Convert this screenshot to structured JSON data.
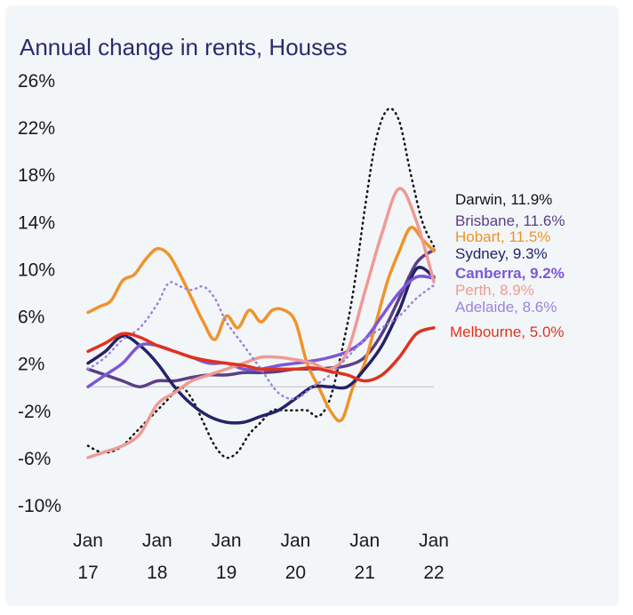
{
  "chart_data": {
    "type": "line",
    "title": "Annual change in rents, Houses",
    "xlabel": "",
    "ylabel": "",
    "xlim": [
      "2017-01",
      "2022-01"
    ],
    "ylim": [
      -10,
      26
    ],
    "y_ticks": [
      "26%",
      "22%",
      "18%",
      "14%",
      "10%",
      "6%",
      "2%",
      "-2%",
      "-6%",
      "-10%"
    ],
    "x_ticks": [
      {
        "line1": "Jan",
        "line2": "17"
      },
      {
        "line1": "Jan",
        "line2": "18"
      },
      {
        "line1": "Jan",
        "line2": "19"
      },
      {
        "line1": "Jan",
        "line2": "20"
      },
      {
        "line1": "Jan",
        "line2": "21"
      },
      {
        "line1": "Jan",
        "line2": "22"
      }
    ],
    "grid": false,
    "legend": "right, end-of-line labels",
    "series": [
      {
        "name": "Darwin",
        "label": "Darwin, 11.9%",
        "color": "#111111",
        "style": "dotted",
        "bold": false,
        "x": [
          "2017-01",
          "2017-03",
          "2017-05",
          "2017-07",
          "2017-09",
          "2017-11",
          "2018-01",
          "2018-03",
          "2018-05",
          "2018-07",
          "2018-09",
          "2018-11",
          "2019-01",
          "2019-03",
          "2019-05",
          "2019-07",
          "2019-09",
          "2019-11",
          "2020-01",
          "2020-03",
          "2020-05",
          "2020-07",
          "2020-09",
          "2020-11",
          "2021-01",
          "2021-03",
          "2021-05",
          "2021-07",
          "2021-09",
          "2021-11",
          "2022-01"
        ],
        "values": [
          -5,
          -5.5,
          -5.5,
          -5,
          -4,
          -3,
          -2,
          -1,
          0,
          -1,
          -3,
          -5,
          -6,
          -5.5,
          -4,
          -3,
          -2,
          -2,
          -2,
          -2,
          -2.5,
          -1,
          3,
          8,
          15,
          21,
          23.5,
          22.5,
          18,
          14,
          11.9
        ]
      },
      {
        "name": "Brisbane",
        "label": "Brisbane, 11.6%",
        "color": "#5b3f86",
        "style": "solid",
        "bold": false,
        "x": [
          "2017-01",
          "2017-04",
          "2017-07",
          "2017-10",
          "2018-01",
          "2018-04",
          "2018-07",
          "2018-10",
          "2019-01",
          "2019-04",
          "2019-07",
          "2019-10",
          "2020-01",
          "2020-04",
          "2020-07",
          "2020-10",
          "2021-01",
          "2021-04",
          "2021-07",
          "2021-10",
          "2022-01"
        ],
        "values": [
          1.5,
          1,
          0.5,
          0,
          0.5,
          0.5,
          0.8,
          1,
          1,
          1.2,
          1.2,
          1.3,
          1.5,
          1.5,
          1.6,
          1.8,
          2.5,
          4.5,
          7.5,
          10.5,
          11.6
        ]
      },
      {
        "name": "Hobart",
        "label": "Hobart, 11.5%",
        "color": "#f0932b",
        "style": "solid",
        "bold": false,
        "x": [
          "2017-01",
          "2017-03",
          "2017-05",
          "2017-07",
          "2017-09",
          "2017-11",
          "2018-01",
          "2018-03",
          "2018-05",
          "2018-07",
          "2018-09",
          "2018-11",
          "2019-01",
          "2019-03",
          "2019-05",
          "2019-07",
          "2019-09",
          "2019-11",
          "2020-01",
          "2020-03",
          "2020-05",
          "2020-07",
          "2020-09",
          "2020-11",
          "2021-01",
          "2021-03",
          "2021-05",
          "2021-07",
          "2021-09",
          "2021-11",
          "2022-01"
        ],
        "values": [
          6.3,
          6.8,
          7.3,
          9,
          9.5,
          10.8,
          11.7,
          11.2,
          9.5,
          7.5,
          5.5,
          4,
          6,
          5,
          6.5,
          5.5,
          6.5,
          6.5,
          5.5,
          2,
          0,
          -2,
          -2.8,
          0,
          2,
          5.5,
          9,
          11.5,
          13.5,
          12.5,
          11.5
        ]
      },
      {
        "name": "Sydney",
        "label": "Sydney, 9.3%",
        "color": "#242368",
        "style": "solid",
        "bold": false,
        "x": [
          "2017-01",
          "2017-04",
          "2017-07",
          "2017-10",
          "2018-01",
          "2018-04",
          "2018-07",
          "2018-10",
          "2019-01",
          "2019-04",
          "2019-07",
          "2019-10",
          "2020-01",
          "2020-04",
          "2020-07",
          "2020-10",
          "2021-01",
          "2021-04",
          "2021-07",
          "2021-10",
          "2022-01"
        ],
        "values": [
          2,
          3,
          4.3,
          3.5,
          2,
          0,
          -1.5,
          -2.5,
          -3,
          -3,
          -2.5,
          -2,
          -1,
          0,
          0,
          0,
          1.5,
          3.5,
          6.5,
          10,
          9.3
        ]
      },
      {
        "name": "Canberra",
        "label": "Canberra, 9.2%",
        "color": "#7c58d6",
        "style": "solid",
        "bold": true,
        "x": [
          "2017-01",
          "2017-04",
          "2017-07",
          "2017-10",
          "2018-01",
          "2018-04",
          "2018-07",
          "2018-10",
          "2019-01",
          "2019-04",
          "2019-07",
          "2019-10",
          "2020-01",
          "2020-04",
          "2020-07",
          "2020-10",
          "2021-01",
          "2021-04",
          "2021-07",
          "2021-10",
          "2022-01"
        ],
        "values": [
          0,
          1,
          2,
          3.5,
          3.5,
          3,
          2.5,
          2,
          2,
          1.5,
          1.5,
          1.8,
          2,
          2.2,
          2.5,
          3,
          4,
          6,
          8,
          9.3,
          9.2
        ]
      },
      {
        "name": "Perth",
        "label": "Perth, 8.9%",
        "color": "#ef9a94",
        "style": "solid",
        "bold": false,
        "x": [
          "2017-01",
          "2017-04",
          "2017-07",
          "2017-10",
          "2018-01",
          "2018-04",
          "2018-07",
          "2018-10",
          "2019-01",
          "2019-04",
          "2019-07",
          "2019-10",
          "2020-01",
          "2020-04",
          "2020-07",
          "2020-10",
          "2021-01",
          "2021-04",
          "2021-07",
          "2021-10",
          "2022-01"
        ],
        "values": [
          -6,
          -5.5,
          -5,
          -4,
          -1.5,
          -0.5,
          0.5,
          1,
          1.5,
          2,
          2.5,
          2.5,
          2.3,
          2,
          1.5,
          3,
          8,
          13,
          16.8,
          14,
          8.9
        ]
      },
      {
        "name": "Adelaide",
        "label": "Adelaide, 8.6%",
        "color": "#9b83e0",
        "style": "dotted",
        "bold": false,
        "x": [
          "2017-01",
          "2017-04",
          "2017-07",
          "2017-10",
          "2018-01",
          "2018-03",
          "2018-05",
          "2018-07",
          "2018-09",
          "2018-11",
          "2019-01",
          "2019-04",
          "2019-07",
          "2019-10",
          "2020-01",
          "2020-04",
          "2020-07",
          "2020-10",
          "2021-01",
          "2021-04",
          "2021-07",
          "2021-10",
          "2022-01"
        ],
        "values": [
          1.5,
          2.5,
          4,
          5,
          7,
          8.8,
          8.5,
          8.2,
          8.5,
          7.5,
          5.5,
          3.5,
          1.5,
          -0.5,
          -1,
          0,
          1,
          2.5,
          4,
          5,
          6,
          7.5,
          8.6
        ]
      },
      {
        "name": "Melbourne",
        "label": "Melbourne, 5.0%",
        "color": "#e0321e",
        "style": "solid",
        "bold": false,
        "x": [
          "2017-01",
          "2017-04",
          "2017-07",
          "2017-10",
          "2018-01",
          "2018-04",
          "2018-07",
          "2018-10",
          "2019-01",
          "2019-04",
          "2019-07",
          "2019-10",
          "2020-01",
          "2020-04",
          "2020-07",
          "2020-10",
          "2021-01",
          "2021-04",
          "2021-07",
          "2021-10",
          "2022-01"
        ],
        "values": [
          3,
          3.7,
          4.5,
          4.2,
          3.5,
          3,
          2.5,
          2.2,
          2,
          1.8,
          1.5,
          1.5,
          1.5,
          1.6,
          1.3,
          1,
          0.5,
          1,
          2.5,
          4.5,
          5
        ]
      }
    ]
  }
}
